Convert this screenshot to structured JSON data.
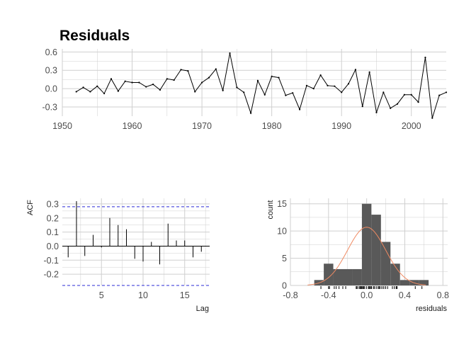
{
  "title": "Residuals",
  "colors": {
    "grid": "#cfcfcf",
    "line": "#000000",
    "bar": "#595959",
    "density": "#f08a62",
    "ci": "#2b2bd6"
  },
  "chart_data": [
    {
      "type": "line",
      "title": "Residuals",
      "xlim": [
        1950,
        2005
      ],
      "ylim": [
        -0.45,
        0.65
      ],
      "xticks": [
        1950,
        1960,
        1970,
        1980,
        1990,
        2000
      ],
      "xtick_labels": [
        "1950",
        "1960",
        "1970",
        "1980",
        "1990",
        "2000"
      ],
      "yticks": [
        -0.3,
        0.0,
        0.3,
        0.6
      ],
      "ytick_labels": [
        "-0.3",
        "0.0",
        "0.3",
        "0.6"
      ],
      "x": [
        1952,
        1953,
        1954,
        1955,
        1956,
        1957,
        1958,
        1959,
        1960,
        1961,
        1962,
        1963,
        1964,
        1965,
        1966,
        1967,
        1968,
        1969,
        1970,
        1971,
        1972,
        1973,
        1974,
        1975,
        1976,
        1977,
        1978,
        1979,
        1980,
        1981,
        1982,
        1983,
        1984,
        1985,
        1986,
        1987,
        1988,
        1989,
        1990,
        1991,
        1992,
        1993,
        1994,
        1995,
        1996,
        1997,
        1998,
        1999,
        2000,
        2001,
        2002,
        2003,
        2004,
        2005
      ],
      "y": [
        -0.05,
        0.02,
        -0.05,
        0.04,
        -0.08,
        0.16,
        -0.04,
        0.12,
        0.1,
        0.1,
        0.03,
        0.07,
        -0.02,
        0.16,
        0.14,
        0.31,
        0.29,
        -0.05,
        0.1,
        0.18,
        0.32,
        -0.03,
        0.58,
        0.02,
        -0.06,
        -0.4,
        0.13,
        -0.1,
        0.2,
        0.18,
        -0.11,
        -0.07,
        -0.34,
        0.05,
        0.0,
        0.22,
        0.05,
        0.04,
        -0.06,
        0.08,
        0.31,
        -0.29,
        0.27,
        -0.39,
        -0.06,
        -0.32,
        -0.25,
        -0.1,
        -0.1,
        -0.22,
        0.51,
        -0.48,
        -0.11,
        -0.06
      ]
    },
    {
      "type": "bar",
      "xlabel": "Lag",
      "ylabel": "ACF",
      "xlim": [
        0.3,
        18
      ],
      "ylim": [
        -0.28,
        0.34
      ],
      "xticks": [
        5,
        10,
        15
      ],
      "xtick_labels": [
        "5",
        "10",
        "15"
      ],
      "yticks": [
        -0.2,
        -0.1,
        0.0,
        0.1,
        0.2,
        0.3
      ],
      "ytick_labels": [
        "-0.2",
        "-0.1",
        "0.0",
        "0.1",
        "0.2",
        "0.3"
      ],
      "lags": [
        1,
        2,
        3,
        4,
        5,
        6,
        7,
        8,
        9,
        10,
        11,
        12,
        13,
        14,
        15,
        16,
        17
      ],
      "values": [
        -0.08,
        0.32,
        -0.07,
        0.08,
        -0.01,
        0.2,
        0.15,
        0.12,
        -0.09,
        -0.11,
        0.03,
        -0.13,
        0.16,
        0.04,
        0.04,
        -0.08,
        -0.04
      ],
      "ci": 0.28
    },
    {
      "type": "histogram",
      "xlabel": "residuals",
      "ylabel": "count",
      "xlim": [
        -0.8,
        0.85
      ],
      "ylim": [
        0,
        16
      ],
      "xticks": [
        -0.8,
        -0.4,
        0.0,
        0.4,
        0.8
      ],
      "xtick_labels": [
        "-0.8",
        "-0.4",
        "0.0",
        "0.4",
        "0.8"
      ],
      "yticks": [
        0,
        5,
        10,
        15
      ],
      "ytick_labels": [
        "0",
        "5",
        "10",
        "15"
      ],
      "bins": [
        {
          "x0": -0.55,
          "x1": -0.45,
          "count": 1
        },
        {
          "x0": -0.45,
          "x1": -0.35,
          "count": 4
        },
        {
          "x0": -0.35,
          "x1": -0.25,
          "count": 3
        },
        {
          "x0": -0.25,
          "x1": -0.15,
          "count": 3
        },
        {
          "x0": -0.15,
          "x1": -0.05,
          "count": 3
        },
        {
          "x0": -0.05,
          "x1": 0.05,
          "count": 15
        },
        {
          "x0": 0.05,
          "x1": 0.15,
          "count": 13
        },
        {
          "x0": 0.15,
          "x1": 0.25,
          "count": 8
        },
        {
          "x0": 0.25,
          "x1": 0.35,
          "count": 4
        },
        {
          "x0": 0.35,
          "x1": 0.45,
          "count": 1
        },
        {
          "x0": 0.45,
          "x1": 0.55,
          "count": 1
        },
        {
          "x0": 0.55,
          "x1": 0.65,
          "count": 1
        }
      ],
      "density": {
        "mean": 0.0,
        "sd": 0.2,
        "peak_count": 10.7,
        "range": [
          -0.62,
          0.62
        ]
      },
      "rug": [
        -0.48,
        -0.4,
        -0.39,
        -0.34,
        -0.32,
        -0.29,
        -0.25,
        -0.22,
        -0.11,
        -0.1,
        -0.1,
        -0.08,
        -0.07,
        -0.06,
        -0.06,
        -0.05,
        -0.05,
        -0.05,
        -0.04,
        -0.03,
        -0.02,
        0.0,
        0.02,
        0.02,
        0.03,
        0.04,
        0.04,
        0.05,
        0.05,
        0.07,
        0.08,
        0.1,
        0.1,
        0.12,
        0.13,
        0.14,
        0.16,
        0.16,
        0.18,
        0.18,
        0.2,
        0.22,
        0.27,
        0.29,
        0.31,
        0.31,
        0.32,
        0.51,
        0.58
      ]
    }
  ]
}
